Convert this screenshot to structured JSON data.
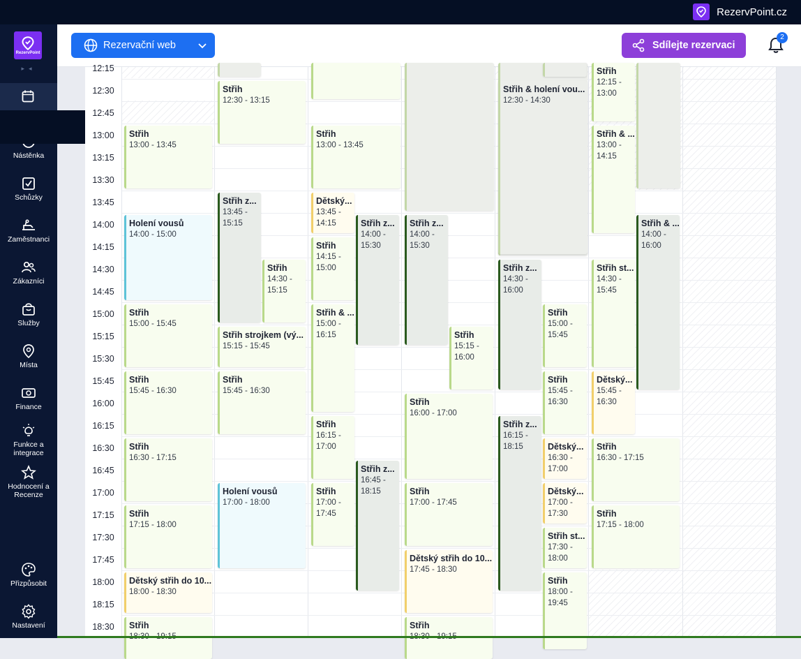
{
  "brand": {
    "name": "RezervPoint.cz",
    "logo_text": "RezervPoint"
  },
  "sidebar": {
    "items": [
      {
        "label": "Nástěnka",
        "icon": "dashboard-icon"
      },
      {
        "label": "Schůzky",
        "icon": "checkbox-icon"
      },
      {
        "label": "Zaměstnanci",
        "icon": "chair-icon"
      },
      {
        "label": "Zákazníci",
        "icon": "users-icon"
      },
      {
        "label": "Služby",
        "icon": "bag-icon"
      },
      {
        "label": "Místa",
        "icon": "location-icon"
      },
      {
        "label": "Finance",
        "icon": "money-icon"
      },
      {
        "label": "Funkce a integrace",
        "icon": "bulb-icon"
      },
      {
        "label": "Hodnocení a Recenze",
        "icon": "star-icon"
      },
      {
        "label": "Přizpůsobit",
        "icon": "palette-icon"
      },
      {
        "label": "Nastavení",
        "icon": "gear-icon"
      }
    ]
  },
  "header": {
    "reservation_web": "Rezervační web",
    "share": "Sdílejte rezervaci",
    "notifications": "2"
  },
  "times": [
    "12:15",
    "12:30",
    "12:45",
    "13:00",
    "13:15",
    "13:30",
    "13:45",
    "14:00",
    "14:15",
    "14:30",
    "14:45",
    "15:00",
    "15:15",
    "15:30",
    "15:45",
    "16:00",
    "16:15",
    "16:30",
    "16:45",
    "17:00",
    "17:15",
    "17:30",
    "17:45",
    "18:00",
    "18:15",
    "18:30"
  ],
  "events": [
    {
      "title": "",
      "time": "",
      "type": "graylight"
    },
    {
      "title": "",
      "time": "",
      "type": "green"
    },
    {
      "title": "",
      "time": "",
      "type": "graylight"
    },
    {
      "title": "",
      "time": "",
      "type": "graylight"
    },
    {
      "title": "",
      "time": "",
      "type": "graylight"
    },
    {
      "title": "Střih",
      "time": "12:15 - 13:00",
      "type": "green"
    },
    {
      "title": "",
      "time": "",
      "type": "graylight"
    },
    {
      "title": "Střih",
      "time": "12:30 - 13:15",
      "type": "green"
    },
    {
      "title": "Střih & holení vou...",
      "time": "12:30 - 14:30",
      "type": "graylight"
    },
    {
      "title": "Střih",
      "time": "13:00 - 13:45",
      "type": "green"
    },
    {
      "title": "Střih",
      "time": "13:00 - 13:45",
      "type": "green"
    },
    {
      "title": "Střih & ...",
      "time": "13:00 - 14:15",
      "type": "green"
    },
    {
      "title": "Střih z...",
      "time": "13:45 - 15:15",
      "type": "gray"
    },
    {
      "title": "Dětský...",
      "time": "13:45 - 14:15",
      "type": "yellow"
    },
    {
      "title": "Holení vousů",
      "time": "14:00 - 15:00",
      "type": "blue"
    },
    {
      "title": "Střih z...",
      "time": "14:00 - 15:30",
      "type": "gray"
    },
    {
      "title": "Střih z...",
      "time": "14:00 - 15:30",
      "type": "gray"
    },
    {
      "title": "Střih & ...",
      "time": "14:00 - 16:00",
      "type": "gray"
    },
    {
      "title": "Střih",
      "time": "14:15 - 15:00",
      "type": "green"
    },
    {
      "title": "Střih",
      "time": "14:30 - 15:15",
      "type": "green"
    },
    {
      "title": "Střih z...",
      "time": "14:30 - 16:00",
      "type": "gray"
    },
    {
      "title": "Střih st...",
      "time": "14:30 - 15:45",
      "type": "green"
    },
    {
      "title": "Střih",
      "time": "15:00 - 15:45",
      "type": "green"
    },
    {
      "title": "Střih & ...",
      "time": "15:00 - 16:15",
      "type": "green"
    },
    {
      "title": "Střih",
      "time": "15:00 - 15:45",
      "type": "green"
    },
    {
      "title": "Střih strojkem (vý...",
      "time": "15:15 - 15:45",
      "type": "green"
    },
    {
      "title": "Střih",
      "time": "15:15 - 16:00",
      "type": "green"
    },
    {
      "title": "Střih",
      "time": "15:45 - 16:30",
      "type": "green"
    },
    {
      "title": "Střih",
      "time": "15:45 - 16:30",
      "type": "green"
    },
    {
      "title": "Střih",
      "time": "15:45 - 16:30",
      "type": "green"
    },
    {
      "title": "Dětský...",
      "time": "15:45 - 16:30",
      "type": "yellow"
    },
    {
      "title": "Střih",
      "time": "16:00 - 17:00",
      "type": "green"
    },
    {
      "title": "Střih",
      "time": "16:15 - 17:00",
      "type": "green"
    },
    {
      "title": "Střih z...",
      "time": "16:15 - 18:15",
      "type": "gray"
    },
    {
      "title": "Střih",
      "time": "16:30 - 17:15",
      "type": "green"
    },
    {
      "title": "Dětský...",
      "time": "16:30 - 17:00",
      "type": "yellow"
    },
    {
      "title": "Střih",
      "time": "16:30 - 17:15",
      "type": "green"
    },
    {
      "title": "Střih z...",
      "time": "16:45 - 18:15",
      "type": "gray"
    },
    {
      "title": "Holení vousů",
      "time": "17:00 - 18:00",
      "type": "blue"
    },
    {
      "title": "Střih",
      "time": "17:00 - 17:45",
      "type": "green"
    },
    {
      "title": "Střih",
      "time": "17:00 - 17:45",
      "type": "green"
    },
    {
      "title": "Dětský...",
      "time": "17:00 - 17:30",
      "type": "yellow"
    },
    {
      "title": "Střih",
      "time": "17:15 - 18:00",
      "type": "green"
    },
    {
      "title": "Střih",
      "time": "17:15 - 18:00",
      "type": "green"
    },
    {
      "title": "Střih st...",
      "time": "17:30 - 18:00",
      "type": "green"
    },
    {
      "title": "Dětský střih do 10...",
      "time": "17:45 - 18:30",
      "type": "yellow"
    },
    {
      "title": "Dětský střih do 10...",
      "time": "18:00 - 18:30",
      "type": "yellow"
    },
    {
      "title": "Střih",
      "time": "18:00 - 19:45",
      "type": "green"
    },
    {
      "title": "Střih",
      "time": "18:30 - 19:15",
      "type": "green"
    },
    {
      "title": "Střih",
      "time": "18:30 - 19:15",
      "type": "green"
    }
  ]
}
